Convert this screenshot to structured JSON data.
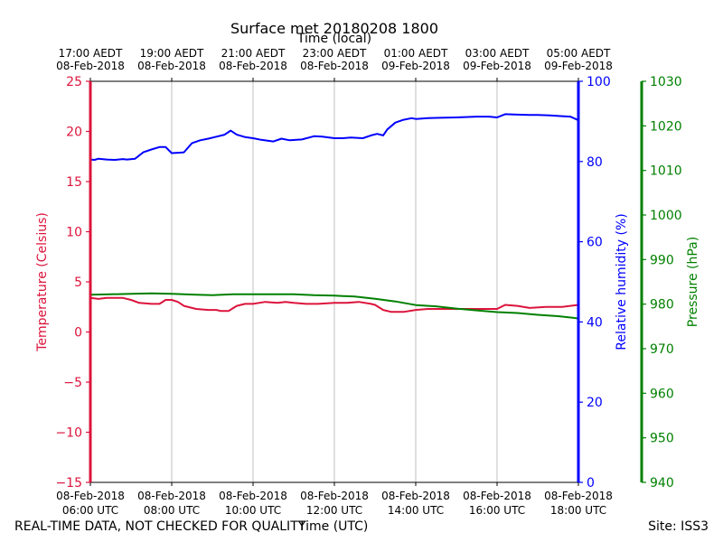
{
  "chart_data": {
    "type": "line",
    "title": "Surface met 20180208 1800",
    "top_axis_title": "Time (local)",
    "xlabel": "Time (UTC)",
    "x_ticks_utc": [
      {
        "time": "06:00",
        "line1": "08-Feb-2018",
        "line2": "06:00 UTC"
      },
      {
        "time": "08:00",
        "line1": "08-Feb-2018",
        "line2": "08:00 UTC"
      },
      {
        "time": "10:00",
        "line1": "08-Feb-2018",
        "line2": "10:00 UTC"
      },
      {
        "time": "12:00",
        "line1": "08-Feb-2018",
        "line2": "12:00 UTC"
      },
      {
        "time": "14:00",
        "line1": "08-Feb-2018",
        "line2": "14:00 UTC"
      },
      {
        "time": "16:00",
        "line1": "08-Feb-2018",
        "line2": "16:00 UTC"
      },
      {
        "time": "18:00",
        "line1": "08-Feb-2018",
        "line2": "18:00 UTC"
      }
    ],
    "x_ticks_local": [
      {
        "line1": "17:00 AEDT",
        "line2": "08-Feb-2018"
      },
      {
        "line1": "19:00 AEDT",
        "line2": "08-Feb-2018"
      },
      {
        "line1": "21:00 AEDT",
        "line2": "08-Feb-2018"
      },
      {
        "line1": "23:00 AEDT",
        "line2": "08-Feb-2018"
      },
      {
        "line1": "01:00 AEDT",
        "line2": "09-Feb-2018"
      },
      {
        "line1": "03:00 AEDT",
        "line2": "09-Feb-2018"
      },
      {
        "line1": "05:00 AEDT",
        "line2": "09-Feb-2018"
      }
    ],
    "xlim_hours": [
      6,
      18
    ],
    "grid": "vertical",
    "axes": {
      "temperature": {
        "label": "Temperature (Celsius)",
        "color": "#dc143c",
        "ylim": [
          -15,
          25
        ],
        "ticks": [
          "−15",
          "−10",
          "−5",
          "0",
          "5",
          "10",
          "15",
          "20",
          "25"
        ]
      },
      "humidity": {
        "label": "Relative humidity (%)",
        "color": "#0000ff",
        "ylim": [
          0,
          100
        ],
        "ticks": [
          "0",
          "20",
          "40",
          "60",
          "80",
          "100"
        ]
      },
      "pressure": {
        "label": "Pressure (hPa)",
        "color": "#008000",
        "ylim": [
          940,
          1030
        ],
        "ticks": [
          "940",
          "950",
          "960",
          "970",
          "980",
          "990",
          "1000",
          "1010",
          "1020",
          "1030"
        ]
      }
    },
    "series": [
      {
        "name": "Relative humidity",
        "axis": "humidity",
        "color": "#0000ff",
        "points": [
          [
            6.0,
            80.5
          ],
          [
            6.1,
            80.4
          ],
          [
            6.2,
            80.7
          ],
          [
            6.4,
            80.5
          ],
          [
            6.6,
            80.4
          ],
          [
            6.8,
            80.6
          ],
          [
            6.9,
            80.5
          ],
          [
            7.1,
            80.7
          ],
          [
            7.3,
            82.3
          ],
          [
            7.5,
            83.0
          ],
          [
            7.7,
            83.6
          ],
          [
            7.85,
            83.6
          ],
          [
            8.0,
            82.1
          ],
          [
            8.2,
            82.2
          ],
          [
            8.3,
            82.3
          ],
          [
            8.5,
            84.6
          ],
          [
            8.7,
            85.3
          ],
          [
            8.9,
            85.7
          ],
          [
            9.1,
            86.2
          ],
          [
            9.3,
            86.7
          ],
          [
            9.45,
            87.7
          ],
          [
            9.6,
            86.7
          ],
          [
            9.8,
            86.1
          ],
          [
            10.0,
            85.8
          ],
          [
            10.2,
            85.4
          ],
          [
            10.5,
            85.0
          ],
          [
            10.7,
            85.7
          ],
          [
            10.9,
            85.3
          ],
          [
            11.2,
            85.5
          ],
          [
            11.5,
            86.3
          ],
          [
            11.7,
            86.2
          ],
          [
            12.0,
            85.8
          ],
          [
            12.2,
            85.8
          ],
          [
            12.4,
            86.0
          ],
          [
            12.7,
            85.8
          ],
          [
            12.9,
            86.5
          ],
          [
            13.05,
            86.9
          ],
          [
            13.2,
            86.5
          ],
          [
            13.3,
            88.0
          ],
          [
            13.5,
            89.7
          ],
          [
            13.7,
            90.4
          ],
          [
            13.9,
            90.8
          ],
          [
            14.0,
            90.6
          ],
          [
            14.3,
            90.8
          ],
          [
            14.6,
            90.9
          ],
          [
            15.0,
            91.0
          ],
          [
            15.5,
            91.2
          ],
          [
            15.8,
            91.2
          ],
          [
            16.0,
            91.0
          ],
          [
            16.2,
            91.8
          ],
          [
            16.5,
            91.7
          ],
          [
            16.8,
            91.6
          ],
          [
            17.0,
            91.6
          ],
          [
            17.3,
            91.5
          ],
          [
            17.6,
            91.3
          ],
          [
            17.8,
            91.2
          ],
          [
            18.0,
            90.3
          ]
        ]
      },
      {
        "name": "Temperature",
        "axis": "temperature",
        "color": "#dc143c",
        "points": [
          [
            6.0,
            3.4
          ],
          [
            6.2,
            3.3
          ],
          [
            6.4,
            3.4
          ],
          [
            6.8,
            3.4
          ],
          [
            7.0,
            3.2
          ],
          [
            7.2,
            2.9
          ],
          [
            7.5,
            2.8
          ],
          [
            7.7,
            2.8
          ],
          [
            7.85,
            3.2
          ],
          [
            8.0,
            3.2
          ],
          [
            8.15,
            3.0
          ],
          [
            8.3,
            2.6
          ],
          [
            8.6,
            2.3
          ],
          [
            8.9,
            2.2
          ],
          [
            9.1,
            2.2
          ],
          [
            9.2,
            2.1
          ],
          [
            9.4,
            2.1
          ],
          [
            9.6,
            2.6
          ],
          [
            9.8,
            2.8
          ],
          [
            10.0,
            2.8
          ],
          [
            10.3,
            3.0
          ],
          [
            10.6,
            2.9
          ],
          [
            10.8,
            3.0
          ],
          [
            11.0,
            2.9
          ],
          [
            11.3,
            2.8
          ],
          [
            11.6,
            2.8
          ],
          [
            12.0,
            2.9
          ],
          [
            12.3,
            2.9
          ],
          [
            12.6,
            3.0
          ],
          [
            12.9,
            2.8
          ],
          [
            13.0,
            2.7
          ],
          [
            13.2,
            2.2
          ],
          [
            13.4,
            2.0
          ],
          [
            13.7,
            2.0
          ],
          [
            14.0,
            2.2
          ],
          [
            14.3,
            2.3
          ],
          [
            14.7,
            2.3
          ],
          [
            15.0,
            2.3
          ],
          [
            15.5,
            2.3
          ],
          [
            15.8,
            2.3
          ],
          [
            16.0,
            2.3
          ],
          [
            16.2,
            2.7
          ],
          [
            16.5,
            2.6
          ],
          [
            16.8,
            2.4
          ],
          [
            17.2,
            2.5
          ],
          [
            17.6,
            2.5
          ],
          [
            18.0,
            2.7
          ]
        ]
      },
      {
        "name": "Pressure",
        "axis": "pressure",
        "color": "#008000",
        "points": [
          [
            6.0,
            982.1
          ],
          [
            6.5,
            982.2
          ],
          [
            7.0,
            982.3
          ],
          [
            7.5,
            982.4
          ],
          [
            8.0,
            982.3
          ],
          [
            8.3,
            982.2
          ],
          [
            8.6,
            982.1
          ],
          [
            9.0,
            982.0
          ],
          [
            9.5,
            982.2
          ],
          [
            10.0,
            982.2
          ],
          [
            10.5,
            982.2
          ],
          [
            11.0,
            982.2
          ],
          [
            11.5,
            982.0
          ],
          [
            12.0,
            981.9
          ],
          [
            12.5,
            981.7
          ],
          [
            13.0,
            981.2
          ],
          [
            13.5,
            980.6
          ],
          [
            14.0,
            979.8
          ],
          [
            14.5,
            979.5
          ],
          [
            15.0,
            979.0
          ],
          [
            15.5,
            978.6
          ],
          [
            16.0,
            978.2
          ],
          [
            16.5,
            978.0
          ],
          [
            17.0,
            977.6
          ],
          [
            17.5,
            977.3
          ],
          [
            18.0,
            976.8
          ]
        ]
      }
    ]
  },
  "footer": {
    "left_note": "REAL-TIME DATA, NOT CHECKED FOR QUALITY",
    "site": "Site: ISS3"
  }
}
